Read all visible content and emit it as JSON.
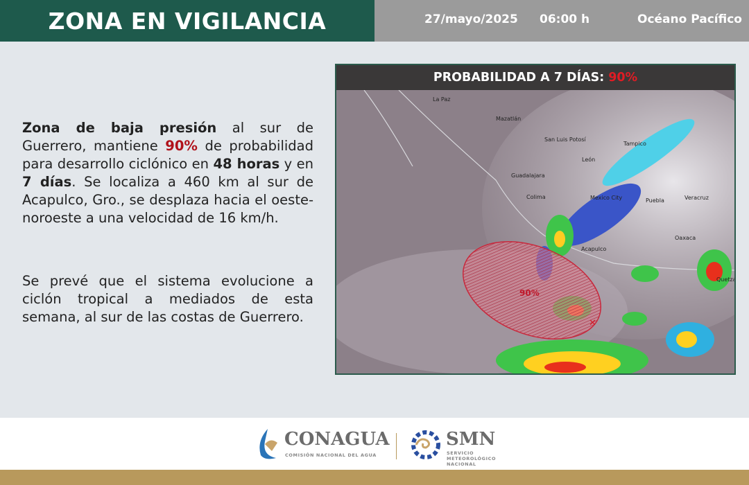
{
  "header": {
    "title": "ZONA EN VIGILANCIA",
    "date": "27/mayo/2025",
    "time": "06:00 h",
    "region": "Océano Pacífico"
  },
  "paragraph1": {
    "p1": "Zona de baja presión",
    "p2": " al sur de Guerrero, mantiene ",
    "p3": "90%",
    "p4": " de probabilidad para desarrollo ciclónico en ",
    "p5": "48 horas",
    "p6": " y en ",
    "p7": "7 días",
    "p8": ". Se localiza a 460 km al sur de Acapulco, Gro., se desplaza hacia el oeste-noroeste a una velocidad de 16 km/h."
  },
  "paragraph2": "Se prevé que el sistema evolucione a ciclón tropical a mediados de esta semana, al sur de las costas de Guerrero.",
  "map": {
    "title": "PROBABILIDAD A 7 DÍAS:",
    "title_pct": "90%",
    "zone_label": "90%",
    "cities": [
      "La Paz",
      "Mazatlán",
      "San Luis Potosí",
      "Tampico",
      "León",
      "Guadalajara",
      "Colima",
      "Mexico City",
      "Puebla",
      "Veracruz",
      "Oaxaca",
      "Acapulco",
      "Quetza"
    ],
    "zone_color": "#c8283c"
  },
  "footer": {
    "conagua": "CONAGUA",
    "conagua_sub": "COMISIÓN NACIONAL DEL AGUA",
    "smn": "SMN",
    "smn_sub1": "SERVICIO",
    "smn_sub2": "METEOROLÓGICO",
    "smn_sub3": "NACIONAL"
  }
}
